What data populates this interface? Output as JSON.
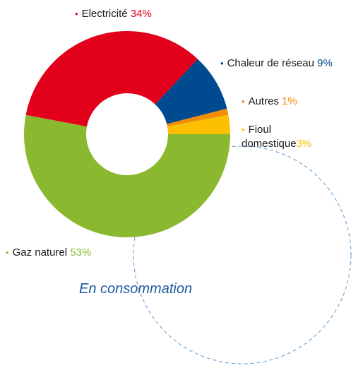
{
  "chart_data": {
    "type": "pie",
    "donut": true,
    "categories": [
      "Gaz naturel",
      "Electricité",
      "Chaleur de réseau",
      "Autres",
      "Fioul domestique"
    ],
    "values": [
      53,
      34,
      9,
      1,
      3
    ],
    "value_labels": [
      "53%",
      "34%",
      "9%",
      "1%",
      "3%"
    ],
    "colors": [
      "#8ab82e",
      "#e2001a",
      "#004a8f",
      "#f28c00",
      "#fcc000"
    ],
    "annotation": "En consommation"
  }
}
